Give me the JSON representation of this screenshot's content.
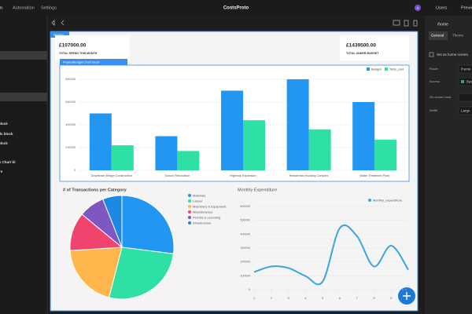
{
  "top_bar": {
    "tabs": [
      "Design",
      "Automation",
      "Settings"
    ],
    "app_name": "CostsProto",
    "avatar": "A",
    "users": "Users",
    "preview": "Preview"
  },
  "left_panel": {
    "items": [
      "block",
      "ards block",
      "block",
      "ions Chart bl",
      "re"
    ]
  },
  "canvas": {
    "screen_label": "Screen",
    "cards": [
      {
        "value": "£107000.00",
        "label": "TOTAL SPEND THIS MONTH"
      },
      {
        "value": "£1439500.00",
        "label": "TOTAL UNDER BUDGET"
      }
    ],
    "block_label": "ProjectBudget Chart block",
    "bar_chart": {
      "type": "bar",
      "categories": [
        "Downtown Bridge Construction",
        "School Renovation",
        "Highway Expansion",
        "Residential Housing Complex",
        "Water Treatment Plant"
      ],
      "series": [
        {
          "name": "Budget",
          "color": "#2196f3",
          "values": [
            500000,
            300000,
            700000,
            800000,
            600000
          ]
        },
        {
          "name": "Total_cost",
          "color": "#2fe0a5",
          "values": [
            220000,
            170000,
            440000,
            360000,
            270000
          ]
        }
      ],
      "ylim": [
        0,
        800000
      ],
      "yticks": [
        0,
        200000,
        400000,
        600000,
        800000
      ],
      "grid": true
    },
    "pie_chart": {
      "type": "pie",
      "title": "# of Transactions per Category",
      "categories": [
        "Materials",
        "Labour",
        "Machinery & Equipment",
        "Miscellaneous",
        "Permits & Licensing",
        "Infrastructure"
      ],
      "values": [
        27,
        27,
        20,
        12,
        8,
        6
      ],
      "colors": [
        "#2196f3",
        "#2fe0a5",
        "#ffb74d",
        "#f0446e",
        "#7e57c2",
        "#1e88e5"
      ]
    },
    "line_chart": {
      "type": "line",
      "title": "Monthly Expenditure",
      "x": [
        1,
        2,
        3,
        4,
        5,
        6,
        7,
        8,
        9,
        10
      ],
      "series": [
        {
          "name": "Monthly_expenditure",
          "color": "#3aa3e3",
          "values": [
            127000,
            167000,
            156000,
            98000,
            58000,
            444000,
            387000,
            167000,
            317000,
            144000
          ]
        }
      ],
      "xlim": [
        1,
        10
      ],
      "xticks": [
        1,
        2,
        3,
        4,
        5,
        6,
        7,
        8,
        9
      ],
      "ylim": [
        0,
        600000
      ],
      "yticks": [
        0,
        100000,
        200000,
        300000,
        400000,
        500000,
        600000
      ],
      "grid": true
    }
  },
  "right_panel": {
    "title": "/home",
    "tabs": [
      "General",
      "Theme"
    ],
    "home_checkbox": "Set as home screen",
    "fields": [
      {
        "label": "Route",
        "value": "/home"
      },
      {
        "label": "Access",
        "value": "Basic"
      },
      {
        "label": "On screen load"
      },
      {
        "label": "Width",
        "value": "Large"
      }
    ]
  }
}
